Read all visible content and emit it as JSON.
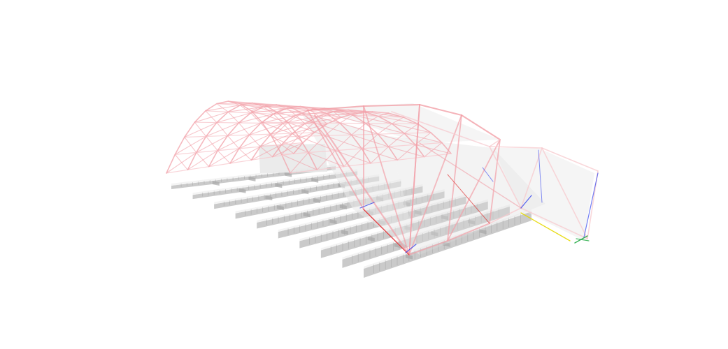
{
  "scene": {
    "subject": "",
    "background_color": "#ffffff",
    "colors": {
      "truss_member": "#f2a0a8",
      "truss_member_light": "#f7c9ce",
      "tension_member": "#3344ee",
      "compression_member": "#dd2222",
      "highlight_member": "#e6d800",
      "support_member": "#22aa44",
      "roof_panel": "#e9e9e9",
      "roof_panel_dark": "#dddddd",
      "bleacher_top": "#f4f4f4",
      "bleacher_face": "#c4c4c4",
      "bleacher_shadow": "#a8a8a8",
      "seat_tick": "#9a9a9a"
    },
    "icons": []
  }
}
